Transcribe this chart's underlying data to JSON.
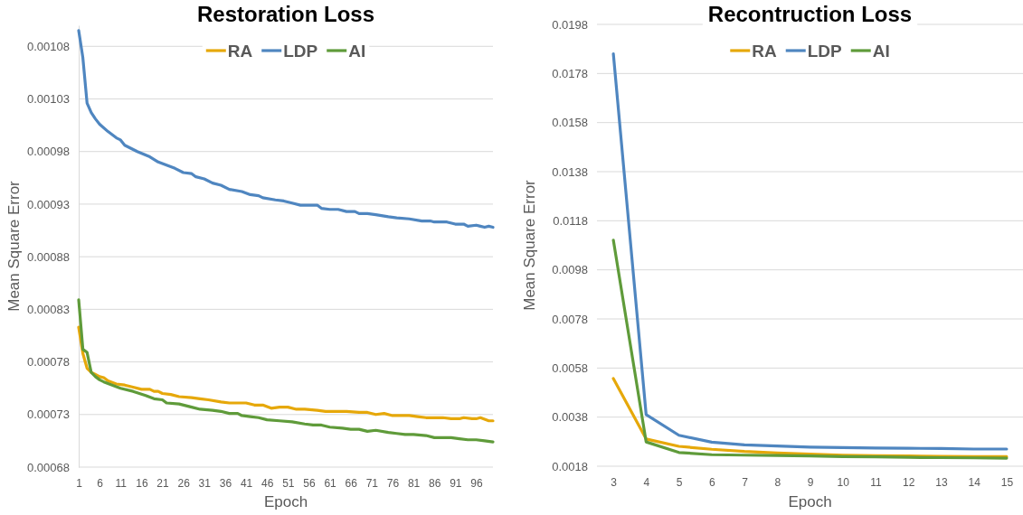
{
  "chart_data": [
    {
      "type": "line",
      "title": "Restoration Loss",
      "xlabel": "Epoch",
      "ylabel": "Mean Square Error",
      "xlim": [
        1,
        100
      ],
      "xticks": [
        1,
        6,
        11,
        16,
        21,
        26,
        31,
        36,
        41,
        46,
        51,
        56,
        61,
        66,
        71,
        76,
        81,
        86,
        91,
        96
      ],
      "ylim": [
        0.00068,
        0.0011
      ],
      "yticks": [
        0.00068,
        0.00073,
        0.00078,
        0.00083,
        0.00088,
        0.00093,
        0.00098,
        0.00103,
        0.00108
      ],
      "grid": "y",
      "legend": "top",
      "line_style": "solid",
      "series": [
        {
          "name": "RA",
          "color": "#e6a80a",
          "x": [
            1,
            2,
            3,
            4,
            5,
            6,
            7,
            8,
            10,
            12,
            14,
            16,
            18,
            19,
            20,
            21,
            23,
            25,
            28,
            30,
            32,
            35,
            37,
            38,
            41,
            43,
            45,
            47,
            49,
            51,
            53,
            55,
            58,
            60,
            63,
            65,
            68,
            70,
            72,
            74,
            76,
            78,
            80,
            82,
            84,
            86,
            88,
            90,
            92,
            93,
            95,
            96,
            97,
            99,
            100
          ],
          "values": [
            0.000813,
            0.000788,
            0.000774,
            0.00077,
            0.000768,
            0.000766,
            0.000765,
            0.000762,
            0.000759,
            0.000758,
            0.000756,
            0.000754,
            0.000754,
            0.000752,
            0.000752,
            0.00075,
            0.000749,
            0.000747,
            0.000746,
            0.000745,
            0.000744,
            0.000742,
            0.000741,
            0.000741,
            0.000741,
            0.000739,
            0.000739,
            0.000736,
            0.000737,
            0.000737,
            0.000735,
            0.000735,
            0.000734,
            0.000733,
            0.000733,
            0.000733,
            0.000732,
            0.000732,
            0.00073,
            0.000731,
            0.000729,
            0.000729,
            0.000729,
            0.000728,
            0.000727,
            0.000727,
            0.000727,
            0.000726,
            0.000726,
            0.000727,
            0.000726,
            0.000726,
            0.000727,
            0.000724,
            0.000724
          ]
        },
        {
          "name": "LDP",
          "color": "#4f86c0",
          "x": [
            1,
            2,
            3,
            4,
            5,
            6,
            8,
            10,
            11,
            12,
            15,
            18,
            20,
            24,
            26,
            28,
            29,
            31,
            33,
            35,
            37,
            40,
            42,
            44,
            45,
            48,
            50,
            52,
            54,
            56,
            58,
            59,
            61,
            63,
            65,
            67,
            68,
            70,
            72,
            75,
            77,
            80,
            83,
            85,
            86,
            89,
            91,
            93,
            94,
            96,
            97,
            98,
            99,
            100
          ],
          "values": [
            0.001095,
            0.001069,
            0.001026,
            0.001017,
            0.001011,
            0.001006,
            0.000999,
            0.000993,
            0.000991,
            0.000986,
            0.00098,
            0.000975,
            0.00097,
            0.000964,
            0.00096,
            0.000959,
            0.000956,
            0.000954,
            0.00095,
            0.000948,
            0.000944,
            0.000942,
            0.000939,
            0.000938,
            0.000936,
            0.000934,
            0.000933,
            0.000931,
            0.000929,
            0.000929,
            0.000929,
            0.000926,
            0.000925,
            0.000925,
            0.000923,
            0.000923,
            0.000921,
            0.000921,
            0.00092,
            0.000918,
            0.000917,
            0.000916,
            0.000914,
            0.000914,
            0.000913,
            0.000913,
            0.000911,
            0.000911,
            0.000909,
            0.00091,
            0.000909,
            0.000908,
            0.000909,
            0.000908
          ]
        },
        {
          "name": "AI",
          "color": "#5f9b3a",
          "x": [
            1,
            2,
            3,
            4,
            5,
            6,
            7,
            9,
            11,
            14,
            17,
            19,
            21,
            22,
            25,
            28,
            30,
            33,
            35,
            37,
            39,
            40,
            42,
            44,
            46,
            49,
            52,
            55,
            57,
            59,
            61,
            64,
            66,
            68,
            70,
            72,
            75,
            77,
            79,
            81,
            84,
            86,
            88,
            90,
            92,
            94,
            96,
            98,
            100
          ],
          "values": [
            0.000839,
            0.000792,
            0.000789,
            0.00077,
            0.000766,
            0.000763,
            0.000761,
            0.000758,
            0.000755,
            0.000752,
            0.000748,
            0.000745,
            0.000744,
            0.000741,
            0.00074,
            0.000737,
            0.000735,
            0.000734,
            0.000733,
            0.000731,
            0.000731,
            0.000729,
            0.000728,
            0.000727,
            0.000725,
            0.000724,
            0.000723,
            0.000721,
            0.00072,
            0.00072,
            0.000718,
            0.000717,
            0.000716,
            0.000716,
            0.000714,
            0.000715,
            0.000713,
            0.000712,
            0.000711,
            0.000711,
            0.00071,
            0.000708,
            0.000708,
            0.000708,
            0.000707,
            0.000706,
            0.000706,
            0.000705,
            0.000704
          ]
        }
      ]
    },
    {
      "type": "line",
      "title": "Recontruction Loss",
      "xlabel": "Epoch",
      "ylabel": "Mean Square Error",
      "categories": [
        "3",
        "4",
        "5",
        "6",
        "7",
        "8",
        "9",
        "10",
        "11",
        "12",
        "13",
        "14",
        "15"
      ],
      "ylim": [
        0.0018,
        0.0198
      ],
      "yticks": [
        0.0018,
        0.0038,
        0.0058,
        0.0078,
        0.0098,
        0.0118,
        0.0138,
        0.0158,
        0.0178,
        0.0198
      ],
      "grid": "y",
      "legend": "top",
      "line_style": "solid",
      "series": [
        {
          "name": "RA",
          "color": "#e6a80a",
          "values": [
            0.00537,
            0.00291,
            0.00261,
            0.00249,
            0.0024,
            0.00234,
            0.00229,
            0.00225,
            0.00223,
            0.00222,
            0.0022,
            0.00219,
            0.00219
          ]
        },
        {
          "name": "LDP",
          "color": "#4f86c0",
          "values": [
            0.0186,
            0.0039,
            0.00306,
            0.00278,
            0.00267,
            0.00262,
            0.00258,
            0.00256,
            0.00254,
            0.00253,
            0.00252,
            0.0025,
            0.0025
          ]
        },
        {
          "name": "AI",
          "color": "#5f9b3a",
          "values": [
            0.01101,
            0.00279,
            0.00236,
            0.00227,
            0.00225,
            0.00224,
            0.00222,
            0.00219,
            0.00218,
            0.00216,
            0.00215,
            0.00214,
            0.00213
          ]
        }
      ]
    }
  ]
}
